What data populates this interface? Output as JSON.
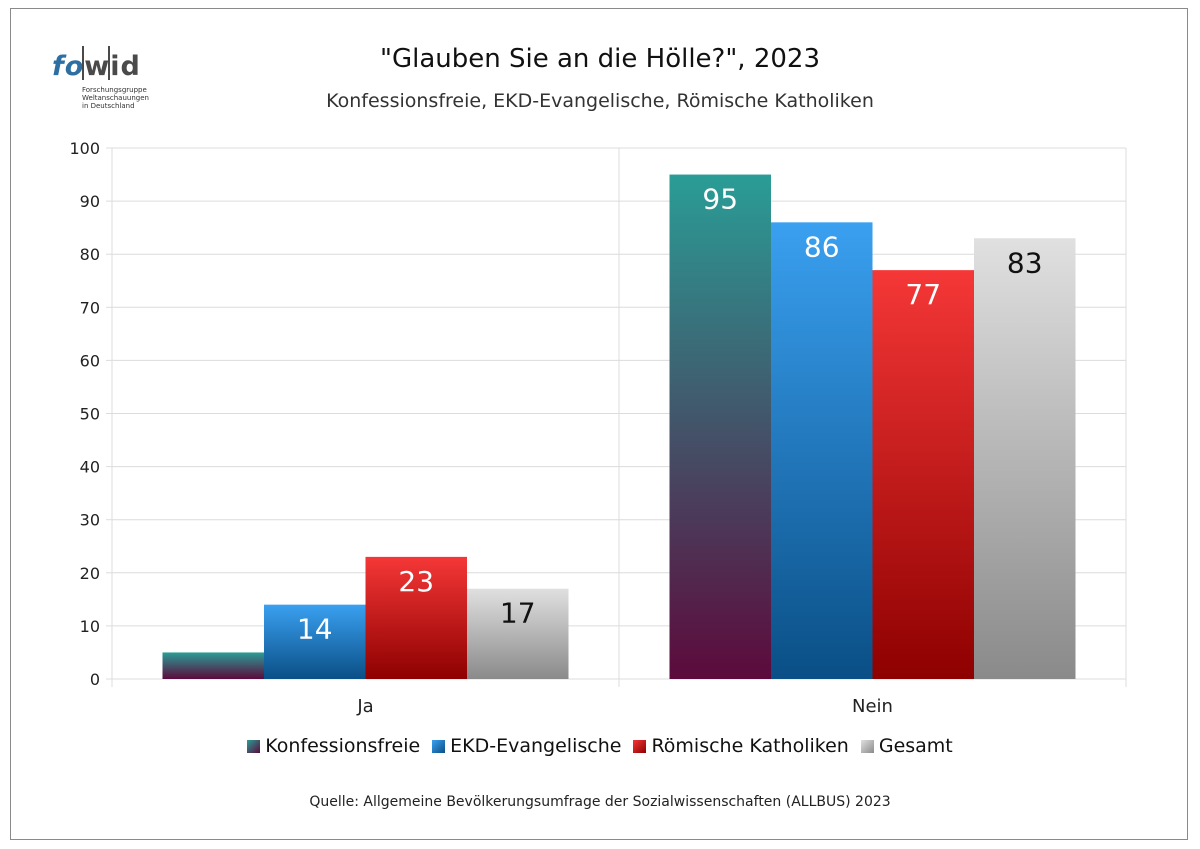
{
  "logo": {
    "word_fo": "fo",
    "word_wid": "wid",
    "subtitle_lines": [
      "Forschungsgruppe",
      "Weltanschauungen",
      "in Deutschland"
    ]
  },
  "source": "Quelle: Allgemeine Bevölkerungsumfrage der Sozialwissenschaften (ALLBUS) 2023",
  "chart_data": {
    "type": "bar",
    "title": "\"Glauben Sie an die Hölle?\", 2023",
    "subtitle": "Konfessionsfreie, EKD-Evangelische, Römische Katholiken",
    "categories": [
      "Ja",
      "Nein"
    ],
    "series": [
      {
        "name": "Konfessionsfreie",
        "values": [
          5,
          95
        ],
        "labels": [
          "",
          "95"
        ],
        "color_top": "#2a9d96",
        "color_bottom": "#5c0a3c",
        "label_color": "#ffffff"
      },
      {
        "name": "EKD-Evangelische",
        "values": [
          14,
          86
        ],
        "labels": [
          "14",
          "86"
        ],
        "color_top": "#3aa0f0",
        "color_bottom": "#0a4f86",
        "label_color": "#ffffff"
      },
      {
        "name": "Römische Katholiken",
        "values": [
          23,
          77
        ],
        "labels": [
          "23",
          "77"
        ],
        "color_top": "#f53737",
        "color_bottom": "#8e0000",
        "label_color": "#ffffff"
      },
      {
        "name": "Gesamt",
        "values": [
          17,
          83
        ],
        "labels": [
          "17",
          "83"
        ],
        "color_top": "#e0e0e0",
        "color_bottom": "#8a8a8a",
        "label_color": "#111111"
      }
    ],
    "ylim": [
      0,
      100
    ],
    "yticks": [
      0,
      10,
      20,
      30,
      40,
      50,
      60,
      70,
      80,
      90,
      100
    ],
    "grid": true,
    "legend": "bottom"
  }
}
